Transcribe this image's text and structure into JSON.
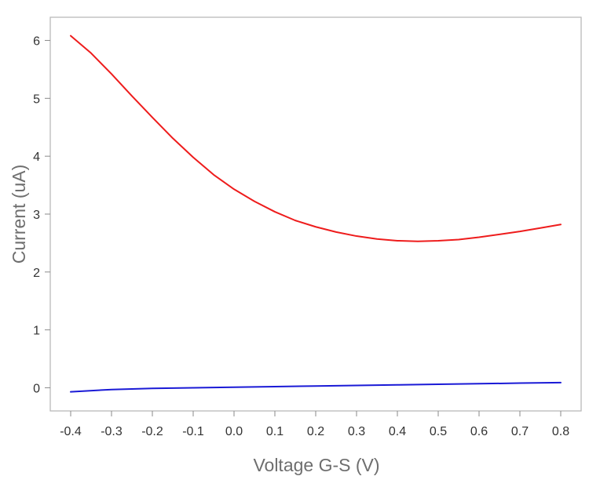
{
  "chart_data": {
    "type": "line",
    "title": "",
    "xlabel": "Voltage G-S (V)",
    "ylabel": "Current (uA)",
    "xlim": [
      -0.45,
      0.85
    ],
    "ylim": [
      -0.4,
      6.4
    ],
    "x_ticks": [
      -0.4,
      -0.3,
      -0.2,
      -0.1,
      0.0,
      0.1,
      0.2,
      0.3,
      0.4,
      0.5,
      0.6,
      0.7,
      0.8
    ],
    "x_tick_labels": [
      "-0.4",
      "-0.3",
      "-0.2",
      "-0.1",
      "0.0",
      "0.1",
      "0.2",
      "0.3",
      "0.4",
      "0.5",
      "0.6",
      "0.7",
      "0.8"
    ],
    "y_ticks": [
      0,
      1,
      2,
      3,
      4,
      5,
      6
    ],
    "y_tick_labels": [
      "0",
      "1",
      "2",
      "3",
      "4",
      "5",
      "6"
    ],
    "grid": false,
    "legend": "none",
    "series": [
      {
        "color": "#ee1c1c",
        "x": [
          -0.4,
          -0.35,
          -0.3,
          -0.25,
          -0.2,
          -0.15,
          -0.1,
          -0.05,
          0.0,
          0.05,
          0.1,
          0.15,
          0.2,
          0.25,
          0.3,
          0.35,
          0.4,
          0.45,
          0.5,
          0.55,
          0.6,
          0.65,
          0.7,
          0.75,
          0.8
        ],
        "values": [
          6.08,
          5.78,
          5.42,
          5.04,
          4.67,
          4.31,
          3.98,
          3.68,
          3.43,
          3.22,
          3.04,
          2.89,
          2.78,
          2.69,
          2.62,
          2.57,
          2.54,
          2.53,
          2.54,
          2.56,
          2.6,
          2.65,
          2.7,
          2.76,
          2.82
        ]
      },
      {
        "color": "#1a1ad6",
        "x": [
          -0.4,
          -0.3,
          -0.2,
          -0.1,
          0.0,
          0.1,
          0.2,
          0.3,
          0.4,
          0.5,
          0.6,
          0.7,
          0.8
        ],
        "values": [
          -0.07,
          -0.03,
          -0.01,
          0.0,
          0.01,
          0.02,
          0.03,
          0.04,
          0.05,
          0.06,
          0.07,
          0.08,
          0.09
        ]
      }
    ]
  }
}
